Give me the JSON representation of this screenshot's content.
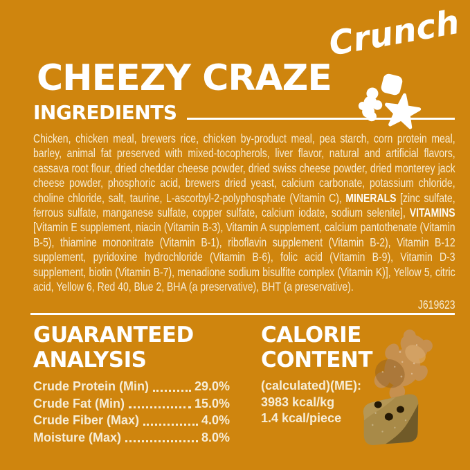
{
  "header": {
    "brand": "CHEEZY CRAZE",
    "variant": "Crunch"
  },
  "decor_icons": [
    "gummy-treat-icon",
    "cube-treat-icon",
    "star-icon"
  ],
  "ingredients": {
    "title": "INGREDIENTS",
    "text": "Chicken, chicken meal, brewers rice, chicken by-product meal, pea starch, corn protein meal, barley, animal fat preserved with mixed-tocopherols, liver flavor, natural and artificial flavors, cassava root flour, dried cheddar cheese powder, dried swiss cheese powder, dried monterey jack cheese powder, phosphoric acid, brewers dried yeast, calcium carbonate, potassium chloride, choline chloride, salt, taurine, L-ascorbyl-2-polyphosphate (Vitamin C), MINERALS [zinc sulfate, ferrous sulfate, manganese sulfate, copper sulfate, calcium iodate, sodium selenite], VITAMINS [Vitamin E supplement, niacin (Vitamin B-3), Vitamin A supplement, calcium pantothenate (Vitamin B-5), thiamine mononitrate (Vitamin B-1), riboflavin supplement (Vitamin B-2), Vitamin B-12 supplement, pyridoxine hydrochloride (Vitamin B-6), folic acid (Vitamin B-9), Vitamin D-3 supplement, biotin (Vitamin B-7), menadione sodium bisulfite complex (Vitamin K)], Yellow 5, citric acid, Yellow 6, Red 40, Blue 2, BHA (a preservative), BHT (a preservative).",
    "bold_terms": [
      "MINERALS",
      "VITAMINS"
    ],
    "code": "J619623"
  },
  "guaranteed_analysis": {
    "title": "GUARANTEED\nANALYSIS",
    "rows": [
      {
        "label": "Crude Protein (Min)",
        "value": "29.0%"
      },
      {
        "label": "Crude Fat (Min)",
        "value": "15.0%"
      },
      {
        "label": "Crude Fiber (Max)",
        "value": "4.0%"
      },
      {
        "label": "Moisture (Max)",
        "value": "8.0%"
      }
    ]
  },
  "calorie_content": {
    "title": "CALORIE\nCONTENT",
    "lines": [
      "(calculated)(ME):",
      "3983 kcal/kg",
      "1.4 kcal/piece"
    ]
  },
  "treats_photo": {
    "items": [
      "bear-shaped-treat",
      "square-treat-with-holes"
    ]
  },
  "colors": {
    "background": "#CF850E",
    "heading": "#FFFFFF",
    "body_text": "#F7EDD6"
  }
}
